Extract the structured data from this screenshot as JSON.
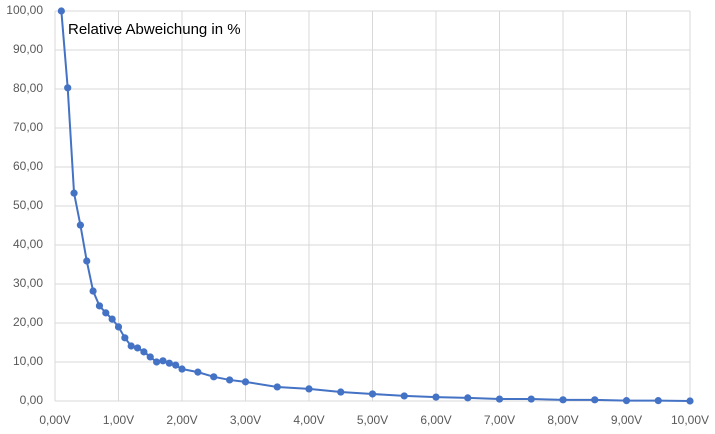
{
  "chart_data": {
    "type": "line",
    "annotation": "Relative Abweichung in %",
    "x": [
      0.1,
      0.2,
      0.3,
      0.4,
      0.5,
      0.6,
      0.7,
      0.8,
      0.9,
      1.0,
      1.1,
      1.2,
      1.3,
      1.4,
      1.5,
      1.6,
      1.7,
      1.8,
      1.9,
      2.0,
      2.25,
      2.5,
      2.75,
      3.0,
      3.5,
      4.0,
      4.5,
      5.0,
      5.5,
      6.0,
      6.5,
      7.0,
      7.5,
      8.0,
      8.5,
      9.0,
      9.5,
      10.0
    ],
    "values": [
      100,
      80.3,
      53.3,
      45.1,
      35.9,
      28.2,
      24.4,
      22.6,
      21.0,
      19.0,
      16.2,
      14.1,
      13.6,
      12.6,
      11.3,
      10.0,
      10.3,
      9.7,
      9.2,
      8.2,
      7.4,
      6.2,
      5.4,
      4.9,
      3.6,
      3.1,
      2.3,
      1.8,
      1.3,
      1.0,
      0.8,
      0.5,
      0.5,
      0.3,
      0.3,
      0.1,
      0.1,
      0.0
    ],
    "color": "#4472c4",
    "xlim": [
      0,
      10
    ],
    "xticks": [
      {
        "value": 0,
        "label": "0,00V"
      },
      {
        "value": 1,
        "label": "1,00V"
      },
      {
        "value": 2,
        "label": "2,00V"
      },
      {
        "value": 3,
        "label": "3,00V"
      },
      {
        "value": 4,
        "label": "4,00V"
      },
      {
        "value": 5,
        "label": "5,00V"
      },
      {
        "value": 6,
        "label": "6,00V"
      },
      {
        "value": 7,
        "label": "7,00V"
      },
      {
        "value": 8,
        "label": "8,00V"
      },
      {
        "value": 9,
        "label": "9,00V"
      },
      {
        "value": 10,
        "label": "10,00V"
      }
    ],
    "ylim": [
      0,
      100
    ],
    "yticks": [
      {
        "value": 0,
        "label": "0,00"
      },
      {
        "value": 10,
        "label": "10,00"
      },
      {
        "value": 20,
        "label": "20,00"
      },
      {
        "value": 30,
        "label": "30,00"
      },
      {
        "value": 40,
        "label": "40,00"
      },
      {
        "value": 50,
        "label": "50,00"
      },
      {
        "value": 60,
        "label": "60,00"
      },
      {
        "value": 70,
        "label": "70,00"
      },
      {
        "value": 80,
        "label": "80,00"
      },
      {
        "value": 90,
        "label": "90,00"
      },
      {
        "value": 100,
        "label": "100,00"
      }
    ],
    "grid": true
  }
}
